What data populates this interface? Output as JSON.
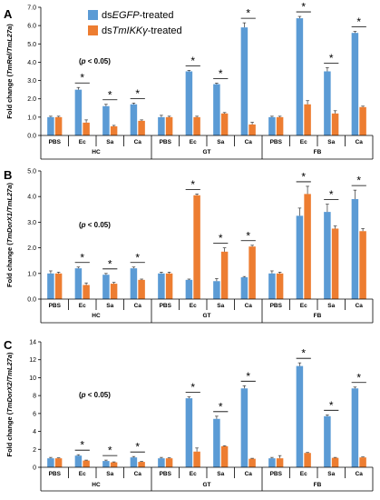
{
  "legend": {
    "items": [
      {
        "prefix": "ds",
        "gene": "EGFP",
        "suffix": "-treated",
        "color": "#5B9BD5"
      },
      {
        "prefix": "ds",
        "gene": "TmIKKγ",
        "suffix": "-treated",
        "color": "#ED7D31"
      }
    ]
  },
  "colors": {
    "series_a": "#5B9BD5",
    "series_b": "#ED7D31",
    "error": "#333333"
  },
  "chart_data": [
    {
      "type": "bar",
      "panel": "A",
      "ylabel_prefix": "Fold change (",
      "ylabel_gene": "TmRel/TmL27a",
      "ylabel_suffix": ")",
      "annotation": "(p < 0.05)",
      "ylim": [
        0,
        7
      ],
      "yticks": [
        "0.0",
        "1.0",
        "2.0",
        "3.0",
        "4.0",
        "5.0",
        "6.0",
        "7.0"
      ],
      "tick_values": [
        0,
        1,
        2,
        3,
        4,
        5,
        6,
        7
      ],
      "categories": [
        "PBS",
        "Ec",
        "Sa",
        "Ca",
        "PBS",
        "Ec",
        "Sa",
        "Ca",
        "PBS",
        "Ec",
        "Sa",
        "Ca"
      ],
      "groups": [
        {
          "label": "HC",
          "start": 0,
          "end": 3
        },
        {
          "label": "GT",
          "start": 4,
          "end": 7
        },
        {
          "label": "FB",
          "start": 8,
          "end": 11
        }
      ],
      "series": [
        {
          "values": [
            1.0,
            2.5,
            1.6,
            1.7,
            1.0,
            3.5,
            2.8,
            5.9,
            1.0,
            6.4,
            3.5,
            5.6
          ],
          "errors": [
            0.05,
            0.12,
            0.1,
            0.07,
            0.1,
            0.05,
            0.06,
            0.25,
            0.05,
            0.1,
            0.2,
            0.08
          ]
        },
        {
          "values": [
            1.0,
            0.7,
            0.5,
            0.8,
            1.0,
            1.0,
            1.2,
            0.6,
            1.0,
            1.7,
            1.2,
            1.55
          ],
          "errors": [
            0.05,
            0.15,
            0.05,
            0.05,
            0.05,
            0.05,
            0.05,
            0.12,
            0.05,
            0.2,
            0.15,
            0.05
          ]
        }
      ],
      "significant": [
        1,
        2,
        3,
        5,
        6,
        7,
        9,
        10,
        11
      ]
    },
    {
      "type": "bar",
      "panel": "B",
      "ylabel_prefix": "Fold change (",
      "ylabel_gene": "TmDorX1/TmL27a",
      "ylabel_suffix": ")",
      "annotation": "(p < 0.05)",
      "ylim": [
        0,
        5
      ],
      "yticks": [
        "0.0",
        "1.0",
        "2.0",
        "3.0",
        "4.0",
        "5.0"
      ],
      "tick_values": [
        0,
        1,
        2,
        3,
        4,
        5
      ],
      "categories": [
        "PBS",
        "Ec",
        "Sa",
        "Ca",
        "PBS",
        "Ec",
        "Sa",
        "Ca",
        "PBS",
        "Ec",
        "Sa",
        "Ca"
      ],
      "groups": [
        {
          "label": "HC",
          "start": 0,
          "end": 3
        },
        {
          "label": "GT",
          "start": 4,
          "end": 7
        },
        {
          "label": "FB",
          "start": 8,
          "end": 11
        }
      ],
      "series": [
        {
          "values": [
            1.0,
            1.2,
            0.95,
            1.2,
            1.0,
            0.75,
            0.7,
            0.85,
            1.0,
            3.25,
            3.4,
            3.9
          ],
          "errors": [
            0.1,
            0.05,
            0.05,
            0.05,
            0.05,
            0.03,
            0.1,
            0.03,
            0.1,
            0.3,
            0.3,
            0.35
          ]
        },
        {
          "values": [
            1.0,
            0.55,
            0.6,
            0.75,
            1.0,
            4.05,
            1.85,
            2.05,
            1.0,
            4.1,
            2.75,
            2.65
          ],
          "errors": [
            0.05,
            0.08,
            0.05,
            0.03,
            0.05,
            0.05,
            0.15,
            0.05,
            0.05,
            0.3,
            0.1,
            0.1
          ]
        }
      ],
      "significant": [
        1,
        2,
        3,
        5,
        6,
        7,
        9,
        10,
        11
      ]
    },
    {
      "type": "bar",
      "panel": "C",
      "ylabel_prefix": "Fold change (",
      "ylabel_gene": "TmDorX2/TmL27a",
      "ylabel_suffix": ")",
      "annotation": "(p < 0.05)",
      "ylim": [
        0,
        14
      ],
      "yticks": [
        "0",
        "2",
        "4",
        "6",
        "8",
        "10",
        "12",
        "14"
      ],
      "tick_values": [
        0,
        2,
        4,
        6,
        8,
        10,
        12,
        14
      ],
      "categories": [
        "PBS",
        "Ec",
        "Sa",
        "Ca",
        "PBS",
        "Ec",
        "Sa",
        "Ca",
        "PBS",
        "Ec",
        "Sa",
        "Ca"
      ],
      "groups": [
        {
          "label": "HC",
          "start": 0,
          "end": 3
        },
        {
          "label": "GT",
          "start": 4,
          "end": 7
        },
        {
          "label": "FB",
          "start": 8,
          "end": 11
        }
      ],
      "series": [
        {
          "values": [
            1.0,
            1.3,
            0.7,
            1.1,
            1.0,
            7.7,
            5.4,
            8.8,
            1.0,
            11.3,
            5.7,
            8.8
          ],
          "errors": [
            0.1,
            0.1,
            0.1,
            0.1,
            0.1,
            0.15,
            0.3,
            0.3,
            0.1,
            0.35,
            0.15,
            0.15
          ]
        },
        {
          "values": [
            1.0,
            0.75,
            0.55,
            0.6,
            1.0,
            1.75,
            2.35,
            0.95,
            1.0,
            1.6,
            1.05,
            1.1
          ],
          "errors": [
            0.05,
            0.05,
            0.05,
            0.05,
            0.05,
            0.4,
            0.05,
            0.05,
            0.3,
            0.05,
            0.05,
            0.05
          ]
        }
      ],
      "significant": [
        1,
        2,
        3,
        5,
        6,
        7,
        9,
        10,
        11
      ]
    }
  ]
}
